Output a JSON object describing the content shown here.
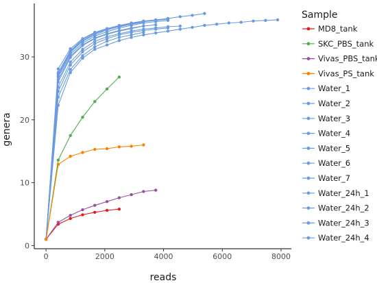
{
  "chart_data": {
    "type": "line",
    "title": "",
    "xlabel": "reads",
    "ylabel": "genera",
    "xlim": [
      -400,
      8350
    ],
    "ylim": [
      -0.5,
      38.5
    ],
    "xticks": [
      0,
      2000,
      4000,
      6000,
      8000
    ],
    "xtick_labels": [
      "0",
      "2000",
      "4000",
      "6000",
      "8000"
    ],
    "yticks": [
      0,
      10,
      20,
      30
    ],
    "ytick_labels": [
      "0",
      "10",
      "20",
      "30"
    ],
    "grid": false,
    "legend": {
      "title": "Sample",
      "placement": "right"
    },
    "series": [
      {
        "name": "MD8_tank",
        "color": "#e41a1c",
        "x": [
          1,
          415,
          830,
          1245,
          1660,
          2075,
          2490
        ],
        "y": [
          1,
          3.4,
          4.3,
          4.9,
          5.3,
          5.6,
          5.8
        ]
      },
      {
        "name": "SKC_PBS_tank",
        "color": "#4daf4a",
        "x": [
          1,
          415,
          830,
          1245,
          1660,
          2075,
          2490
        ],
        "y": [
          1,
          13.6,
          17.5,
          20.4,
          22.9,
          24.9,
          26.8
        ]
      },
      {
        "name": "Vivas_PBS_tank",
        "color": "#984ea3",
        "x": [
          1,
          415,
          830,
          1245,
          1660,
          2075,
          2490,
          2905,
          3320,
          3735
        ],
        "y": [
          1,
          3.7,
          4.8,
          5.7,
          6.4,
          7.0,
          7.6,
          8.1,
          8.6,
          8.8
        ]
      },
      {
        "name": "Vivas_PS_tank",
        "color": "#ff7f00",
        "x": [
          1,
          415,
          830,
          1245,
          1660,
          2075,
          2490,
          2905,
          3320
        ],
        "y": [
          1,
          12.9,
          14.2,
          14.8,
          15.3,
          15.4,
          15.7,
          15.8,
          16.0
        ]
      },
      {
        "name": "Water_1",
        "color": "#6a9be0",
        "x": [
          1,
          415,
          830,
          1245,
          1660,
          2075,
          2490,
          2905,
          3320,
          3735,
          4150,
          4565,
          4980,
          5395
        ],
        "y": [
          1,
          28.1,
          31.3,
          32.9,
          33.9,
          34.5,
          35.0,
          35.4,
          35.7,
          35.9,
          36.1,
          36.4,
          36.6,
          36.9
        ]
      },
      {
        "name": "Water_2",
        "color": "#6a9be0",
        "x": [
          1,
          415,
          830,
          1245,
          1660,
          2075,
          2490,
          2905,
          3320,
          3735,
          4150,
          4565,
          4980,
          5395,
          5810,
          6225,
          6640,
          7055,
          7470,
          7885
        ],
        "y": [
          1,
          22.3,
          27.5,
          29.8,
          31.2,
          31.9,
          32.6,
          33.1,
          33.5,
          33.8,
          34.1,
          34.4,
          34.7,
          35.0,
          35.2,
          35.4,
          35.5,
          35.7,
          35.8,
          35.9
        ]
      },
      {
        "name": "Water_3",
        "color": "#6a9be0",
        "x": [
          1,
          415,
          830,
          1245,
          1660,
          2075,
          2490,
          2905,
          3320
        ],
        "y": [
          1,
          27.5,
          31.0,
          32.8,
          33.8,
          34.4,
          34.9,
          35.3,
          35.6
        ]
      },
      {
        "name": "Water_4",
        "color": "#6a9be0",
        "x": [
          1,
          415,
          830,
          1245,
          1660,
          2075,
          2490,
          2905,
          3320,
          3735,
          4150
        ],
        "y": [
          1,
          26.8,
          30.4,
          32.2,
          33.3,
          34.0,
          34.6,
          35.0,
          35.4,
          35.6,
          35.8
        ]
      },
      {
        "name": "Water_5",
        "color": "#6a9be0",
        "x": [
          1,
          415,
          830,
          1245,
          1660,
          2075,
          2490,
          2905,
          3320
        ],
        "y": [
          1,
          26.0,
          29.9,
          31.8,
          32.9,
          33.6,
          34.1,
          34.5,
          34.9
        ]
      },
      {
        "name": "Water_6",
        "color": "#6a9be0",
        "x": [
          1,
          415,
          830,
          1245,
          1660,
          2075,
          2490,
          2905,
          3320,
          3735,
          4150,
          4565
        ],
        "y": [
          1,
          25.2,
          29.2,
          31.2,
          32.5,
          33.2,
          33.7,
          34.1,
          34.4,
          34.6,
          34.8,
          34.9
        ]
      },
      {
        "name": "Water_7",
        "color": "#6a9be0",
        "x": [
          1,
          415,
          830,
          1245,
          1660,
          2075,
          2490,
          2905,
          3320
        ],
        "y": [
          1,
          27.0,
          30.7,
          32.5,
          33.5,
          34.3,
          34.8,
          35.2,
          35.5
        ]
      },
      {
        "name": "Water_24h_1",
        "color": "#6a9be0",
        "x": [
          1,
          415,
          830,
          1245,
          1660,
          2075,
          2490,
          2905,
          3320,
          3735,
          4150
        ],
        "y": [
          1,
          24.5,
          28.7,
          30.8,
          32.1,
          32.9,
          33.5,
          33.9,
          34.2,
          34.4,
          34.6
        ]
      },
      {
        "name": "Water_24h_2",
        "color": "#6a9be0",
        "x": [
          1,
          415,
          830,
          1245,
          1660,
          2075,
          2490,
          2905,
          3320,
          3735
        ],
        "y": [
          1,
          26.4,
          30.1,
          31.9,
          33.0,
          33.7,
          34.2,
          34.6,
          34.9,
          35.1
        ]
      },
      {
        "name": "Water_24h_3",
        "color": "#6a9be0",
        "x": [
          1,
          415,
          830,
          1245,
          1660,
          2075,
          2490,
          2905,
          3320,
          3735,
          4150
        ],
        "y": [
          1,
          27.3,
          30.9,
          32.6,
          33.7,
          34.4,
          34.9,
          35.3,
          35.6,
          35.8,
          36.0
        ]
      },
      {
        "name": "Water_24h_4",
        "color": "#6a9be0",
        "x": [
          1,
          415,
          830,
          1245,
          1660,
          2075,
          2490,
          2905,
          3320
        ],
        "y": [
          1,
          23.6,
          28.0,
          30.2,
          31.6,
          32.5,
          33.1,
          33.5,
          33.9
        ]
      }
    ]
  }
}
